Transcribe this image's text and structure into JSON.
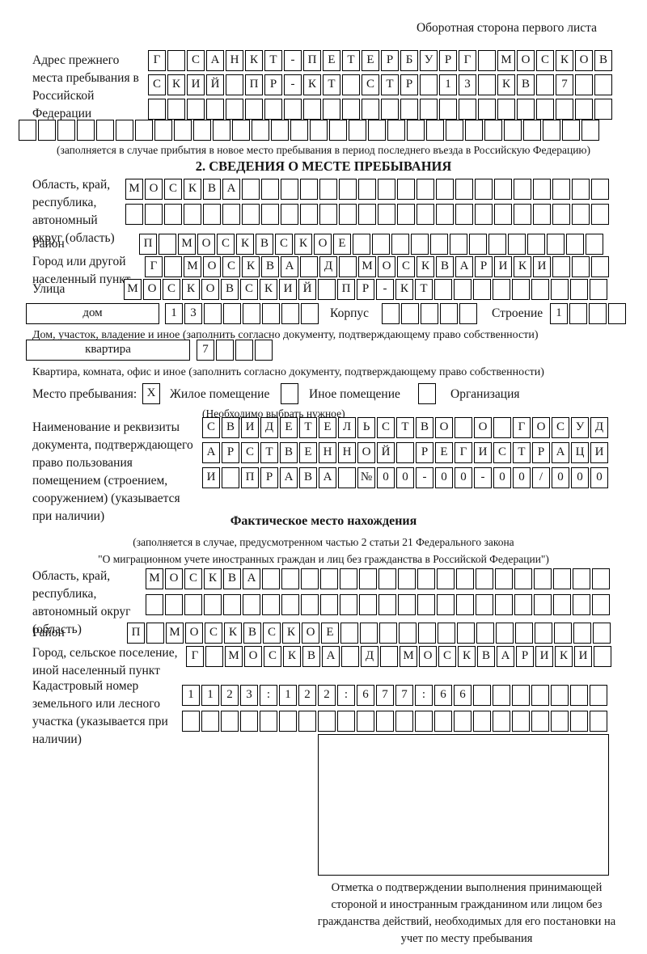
{
  "header": {
    "title": "Оборотная сторона первого листа"
  },
  "prev_address": {
    "label": "Адрес прежнего места пребывания в Российской Федерации",
    "rows": [
      {
        "text": "Г САНКТ-ПЕТЕРБУРГ МОСКОВ",
        "count": 24
      },
      {
        "text": "СКИЙ ПР-КТ СТР 13 КВ 7",
        "count": 24
      },
      {
        "text": "",
        "count": 24
      },
      {
        "text": "",
        "count": 30
      }
    ],
    "note": "(заполняется в случае прибытия в новое место пребывания в период последнего въезда в Российскую Федерацию)"
  },
  "section2": {
    "title": "2. СВЕДЕНИЯ О МЕСТЕ ПРЕБЫВАНИЯ",
    "region": {
      "label": "Область, край, республика, автономный округ (область)",
      "rows": [
        {
          "text": "МОСКВА",
          "count": 25
        },
        {
          "text": "",
          "count": 25
        }
      ]
    },
    "district": {
      "label": "Район",
      "row": {
        "text": "П МОСКВСКОЕ",
        "count": 24
      }
    },
    "city": {
      "label": "Город или другой населенный пункт",
      "row": {
        "text": "Г МОСКВА Д МОСКВАРИКИ",
        "count": 24
      }
    },
    "street": {
      "label": "Улица",
      "row": {
        "text": "МОСКОВСКИЙ ПР-КТ",
        "count": 25
      }
    },
    "house": {
      "box_label": "дом",
      "cells": {
        "text": "13",
        "count": 8
      },
      "korpus_label": "Корпус",
      "korpus_cells": {
        "text": "",
        "count": 5
      },
      "stroenie_label": "Строение",
      "stroenie_cells": {
        "text": "1",
        "count": 4
      },
      "note": "Дом, участок, владение и иное (заполнить согласно документу, подтверждающему право собственности)"
    },
    "apartment": {
      "box_label": "квартира",
      "cells": {
        "text": "7",
        "count": 4
      },
      "note": "Квартира, комната, офис и иное (заполнить согласно документу, подтверждающему право собственности)"
    },
    "stay_place": {
      "label": "Место пребывания:",
      "options": [
        {
          "label": "Жилое помещение",
          "mark": "X"
        },
        {
          "label": "Иное помещение",
          "mark": ""
        },
        {
          "label": "Организация",
          "mark": ""
        }
      ],
      "note": "(Необходимо выбрать нужное)"
    },
    "document": {
      "label": "Наименование и реквизиты документа, подтверждающего право пользования помещением (строением, сооружением) (указывается при наличии)",
      "rows": [
        {
          "text": "СВИДЕТЕЛЬСТВО О ГОСУД",
          "count": 21
        },
        {
          "text": "АРСТВЕННОЙ РЕГИСТРАЦИ",
          "count": 21
        },
        {
          "text": "И ПРАВА №00-00-00/000",
          "count": 21
        }
      ]
    }
  },
  "section3": {
    "title": "Фактическое место нахождения",
    "note_line1": "(заполняется в случае, предусмотренном частью 2 статьи 21 Федерального закона",
    "note_line2": "\"О миграционном учете иностранных граждан и лиц без гражданства в Российской Федерации\")",
    "region": {
      "label": "Область, край, республика, автономный округ (область)",
      "rows": [
        {
          "text": "МОСКВА",
          "count": 24
        },
        {
          "text": "",
          "count": 24
        }
      ]
    },
    "district": {
      "label": "Район",
      "row": {
        "text": "П МОСКВСКОЕ",
        "count": 25
      }
    },
    "city": {
      "label": "Город, сельское поселение, иной населенный пункт",
      "row": {
        "text": "Г МОСКВА Д МОСКВАРИКИ",
        "count": 22
      }
    },
    "cadastre": {
      "label": "Кадастровый номер земельного или лесного участка (указывается при наличии)",
      "rows": [
        {
          "text": "1123:122:677:66",
          "count": 22
        },
        {
          "text": "",
          "count": 22
        }
      ]
    },
    "stamp_caption": "Отметка о подтверждении выполнения принимающей стороной и иностранным гражданином или лицом без гражданства действий, необходимых для его постановки на учет по месту пребывания"
  }
}
